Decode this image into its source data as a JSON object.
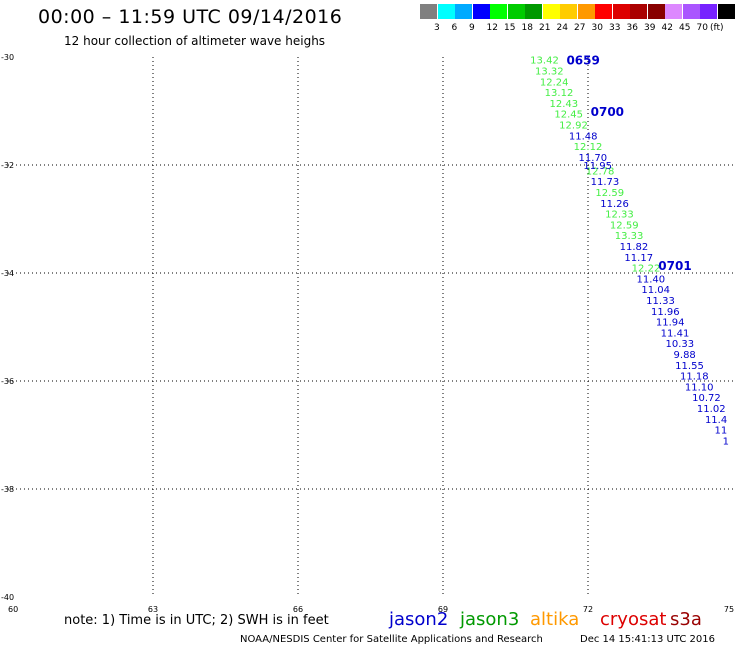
{
  "header": {
    "title": "00:00 – 11:59 UTC 09/14/2016",
    "subtitle": "12 hour collection of altimeter wave heighs"
  },
  "color_scale": {
    "colors": [
      "#808080",
      "#00ffff",
      "#00aaff",
      "#0000ff",
      "#00ff00",
      "#00cc00",
      "#009900",
      "#ffff00",
      "#ffcc00",
      "#ff9900",
      "#ff0000",
      "#dd0000",
      "#aa0000",
      "#880000",
      "#dd88ff",
      "#aa55ff",
      "#7722ff",
      "#000000"
    ],
    "labels": [
      "3",
      "6",
      "9",
      "12",
      "15",
      "18",
      "21",
      "24",
      "27",
      "30",
      "33",
      "36",
      "39",
      "42",
      "45",
      "70"
    ],
    "unit": "(ft)"
  },
  "footer": {
    "note": "note: 1) Time is in UTC; 2) SWH is in feet",
    "credit": "NOAA/NESDIS Center for Satellite Applications and Research",
    "generated": "Dec 14 15:41:13 UTC 2016"
  },
  "legend": [
    {
      "name": "jason2",
      "color": "#0000cc"
    },
    {
      "name": "jason3",
      "color": "#009900"
    },
    {
      "name": "altika",
      "color": "#ff9900"
    },
    {
      "name": "cryosat",
      "color": "#dd0000"
    },
    {
      "name": "s3a",
      "color": "#990000"
    }
  ],
  "chart_data": {
    "type": "scatter",
    "xlim": [
      60,
      75
    ],
    "ylim": [
      -40,
      -30
    ],
    "x_ticks": [
      "60",
      "63",
      "66",
      "69",
      "72",
      "75"
    ],
    "y_ticks": [
      "-30",
      "-32",
      "-34",
      "-36",
      "-38",
      "-40"
    ],
    "grid": true,
    "series": [
      {
        "name": "jason3",
        "color": "#44ee44",
        "points": [
          {
            "x": 71.1,
            "y": -30.05,
            "v": "13.42"
          },
          {
            "x": 71.2,
            "y": -30.25,
            "v": "13.32"
          },
          {
            "x": 71.3,
            "y": -30.45,
            "v": "12.24"
          },
          {
            "x": 71.4,
            "y": -30.65,
            "v": "13.12"
          },
          {
            "x": 71.5,
            "y": -30.85,
            "v": "12.43"
          },
          {
            "x": 71.6,
            "y": -31.05,
            "v": "12.45"
          },
          {
            "x": 71.7,
            "y": -31.25,
            "v": "12.92"
          },
          {
            "x": 72.0,
            "y": -31.65,
            "v": "12.12"
          },
          {
            "x": 72.25,
            "y": -32.1,
            "v": "12.78"
          },
          {
            "x": 72.45,
            "y": -32.5,
            "v": "12.59"
          },
          {
            "x": 72.65,
            "y": -32.9,
            "v": "12.33"
          },
          {
            "x": 72.75,
            "y": -33.1,
            "v": "12.59"
          },
          {
            "x": 72.85,
            "y": -33.3,
            "v": "13.33"
          },
          {
            "x": 73.2,
            "y": -33.9,
            "v": "12.22"
          }
        ]
      },
      {
        "name": "jason2",
        "color": "#0000cc",
        "points": [
          {
            "x": 71.9,
            "y": -31.45,
            "v": "11.48"
          },
          {
            "x": 72.1,
            "y": -31.85,
            "v": "11.70"
          },
          {
            "x": 72.2,
            "y": -32.0,
            "v": "11.95"
          },
          {
            "x": 72.35,
            "y": -32.3,
            "v": "11.73"
          },
          {
            "x": 72.55,
            "y": -32.7,
            "v": "11.26"
          },
          {
            "x": 72.95,
            "y": -33.5,
            "v": "11.82"
          },
          {
            "x": 73.05,
            "y": -33.7,
            "v": "11.17"
          },
          {
            "x": 73.3,
            "y": -34.1,
            "v": "11.40"
          },
          {
            "x": 73.4,
            "y": -34.3,
            "v": "11.04"
          },
          {
            "x": 73.5,
            "y": -34.5,
            "v": "11.33"
          },
          {
            "x": 73.6,
            "y": -34.7,
            "v": "11.96"
          },
          {
            "x": 73.7,
            "y": -34.9,
            "v": "11.94"
          },
          {
            "x": 73.8,
            "y": -35.1,
            "v": "11.41"
          },
          {
            "x": 73.9,
            "y": -35.3,
            "v": "10.33"
          },
          {
            "x": 74.0,
            "y": -35.5,
            "v": "9.88"
          },
          {
            "x": 74.1,
            "y": -35.7,
            "v": "11.55"
          },
          {
            "x": 74.2,
            "y": -35.9,
            "v": "11.18"
          },
          {
            "x": 74.3,
            "y": -36.1,
            "v": "11.10"
          },
          {
            "x": 74.45,
            "y": -36.3,
            "v": "10.72"
          },
          {
            "x": 74.55,
            "y": -36.5,
            "v": "11.02"
          },
          {
            "x": 74.65,
            "y": -36.7,
            "v": "11.4"
          },
          {
            "x": 74.75,
            "y": -36.9,
            "v": "11"
          },
          {
            "x": 74.85,
            "y": -37.1,
            "v": "1"
          }
        ]
      }
    ],
    "time_labels": [
      {
        "x": 71.9,
        "y": -30.05,
        "text": "0659",
        "color": "#0000cc"
      },
      {
        "x": 72.4,
        "y": -31.0,
        "text": "0700",
        "color": "#0000cc"
      },
      {
        "x": 73.8,
        "y": -33.85,
        "text": "0701",
        "color": "#0000cc"
      }
    ]
  }
}
